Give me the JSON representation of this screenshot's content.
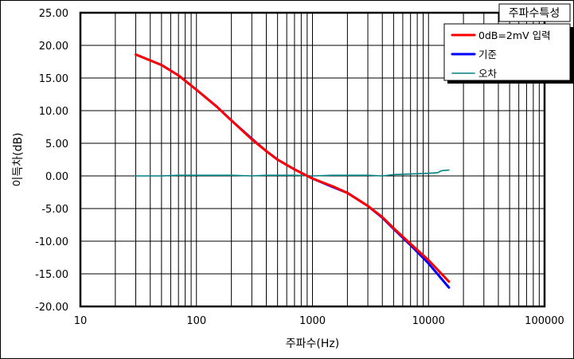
{
  "chart_data": {
    "type": "line",
    "title": "주파수특성",
    "xlabel": "주파수(Hz)",
    "ylabel": "이득차(dB)",
    "x_scale": "log",
    "xlim": [
      10,
      100000
    ],
    "ylim": [
      -20,
      25
    ],
    "grid": true,
    "legend_position": "top-right",
    "x_tick_labels": [
      "10",
      "100",
      "1000",
      "10000",
      "100000"
    ],
    "x_tick_values": [
      10,
      100,
      1000,
      10000,
      100000
    ],
    "y_tick_labels": [
      "25.00",
      "20.00",
      "15.00",
      "10.00",
      "5.00",
      "0.00",
      "-5.00",
      "-10.00",
      "-15.00",
      "-20.00"
    ],
    "y_tick_values": [
      25,
      20,
      15,
      10,
      5,
      0,
      -5,
      -10,
      -15,
      -20
    ],
    "series": [
      {
        "name": "0dB=2mV 입력",
        "color": "#ff0000",
        "x": [
          30,
          50,
          70,
          100,
          150,
          200,
          300,
          400,
          500,
          700,
          1000,
          1500,
          2000,
          3000,
          4000,
          5000,
          7000,
          10000,
          15000
        ],
        "y": [
          18.6,
          17.0,
          15.4,
          13.2,
          10.6,
          8.5,
          5.6,
          3.8,
          2.5,
          1.0,
          -0.4,
          -1.6,
          -2.6,
          -4.6,
          -6.3,
          -8.0,
          -10.4,
          -12.9,
          -16.2
        ]
      },
      {
        "name": "기준",
        "color": "#0000ff",
        "x": [
          30,
          50,
          70,
          100,
          150,
          200,
          300,
          400,
          500,
          700,
          1000,
          1500,
          2000,
          3000,
          4000,
          5000,
          7000,
          10000,
          15000
        ],
        "y": [
          18.6,
          17.0,
          15.4,
          13.2,
          10.6,
          8.5,
          5.7,
          3.8,
          2.5,
          1.0,
          -0.4,
          -1.7,
          -2.6,
          -4.6,
          -6.4,
          -8.1,
          -10.6,
          -13.4,
          -17.1
        ]
      },
      {
        "name": "오차",
        "color": "#008080",
        "x": [
          30,
          50,
          70,
          100,
          150,
          200,
          300,
          400,
          500,
          700,
          1000,
          1500,
          2000,
          3000,
          4000,
          5000,
          7000,
          10000,
          12000,
          13000,
          15000
        ],
        "y": [
          0.0,
          0.0,
          0.1,
          0.1,
          0.1,
          0.1,
          0.0,
          0.1,
          0.1,
          0.1,
          0.0,
          0.1,
          0.1,
          0.1,
          0.0,
          0.2,
          0.3,
          0.4,
          0.5,
          0.8,
          0.9
        ]
      }
    ]
  }
}
